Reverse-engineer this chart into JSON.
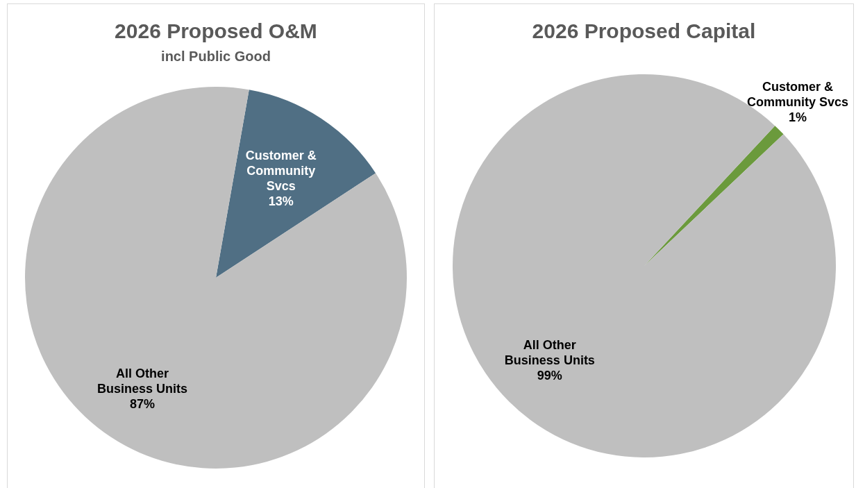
{
  "chart_data": [
    {
      "type": "pie",
      "title": "2026 Proposed O&M",
      "subtitle": "incl Public Good",
      "categories": [
        "Customer & Community Svcs",
        "All Other Business Units"
      ],
      "values": [
        13,
        87
      ],
      "colors": [
        "#506f84",
        "#bfbfbf"
      ],
      "value_labels": [
        "13%",
        "87%"
      ]
    },
    {
      "type": "pie",
      "title": "2026 Proposed Capital",
      "categories": [
        "Customer & Community Svcs",
        "All Other Business Units"
      ],
      "values": [
        1,
        99
      ],
      "colors": [
        "#6b9a3c",
        "#bfbfbf"
      ],
      "value_labels": [
        "1%",
        "99%"
      ]
    }
  ]
}
